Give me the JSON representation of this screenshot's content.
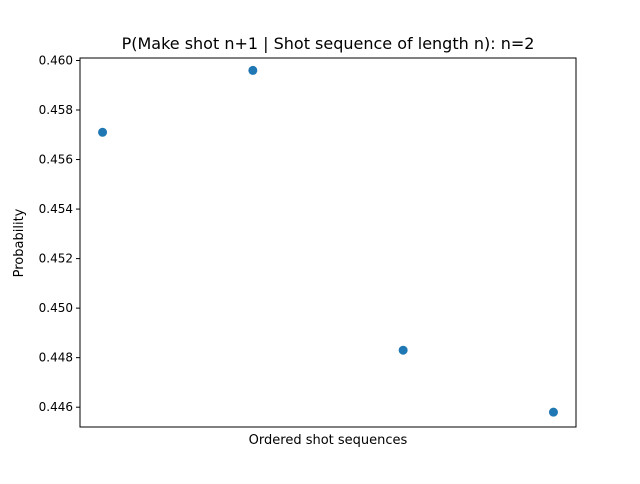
{
  "chart_data": {
    "type": "scatter",
    "title": "P(Make shot n+1 | Shot sequence of length n): n=2",
    "xlabel": "Ordered shot sequences",
    "ylabel": "Probability",
    "x": [
      0,
      1,
      2,
      3
    ],
    "xlim": [
      -0.15,
      3.15
    ],
    "y": [
      0.4571,
      0.4596,
      0.4483,
      0.4458
    ],
    "ylim": [
      0.4452,
      0.4601
    ],
    "yticks": [
      0.446,
      0.448,
      0.45,
      0.452,
      0.454,
      0.456,
      0.458,
      0.46
    ],
    "ytick_labels": [
      "0.446",
      "0.448",
      "0.450",
      "0.452",
      "0.454",
      "0.456",
      "0.458",
      "0.460"
    ],
    "marker_color": "#1f77b4",
    "grid": false,
    "legend": false
  }
}
